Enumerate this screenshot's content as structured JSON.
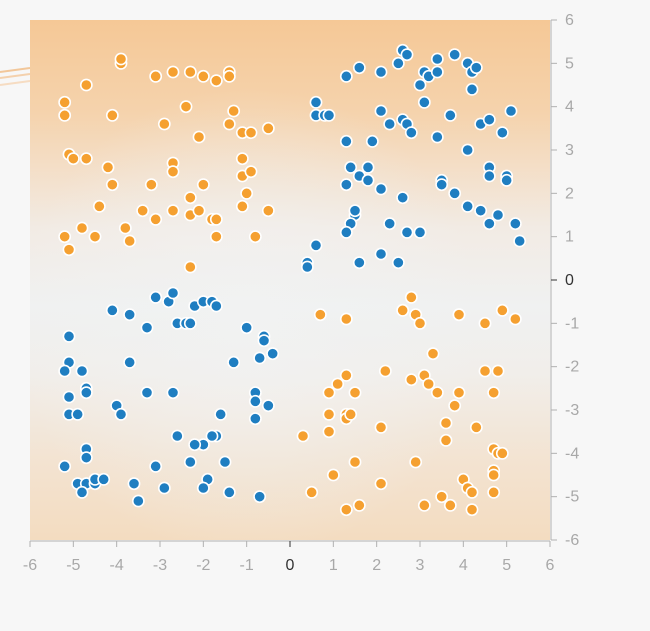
{
  "chart_data": {
    "type": "scatter",
    "title": "",
    "xlabel": "",
    "ylabel": "",
    "xlim": [
      -6,
      6
    ],
    "ylim": [
      -6,
      6
    ],
    "x_ticks": [
      "-6",
      "-5",
      "-4",
      "-3",
      "-2",
      "-1",
      "0",
      "1",
      "2",
      "3",
      "4",
      "5",
      "6"
    ],
    "y_ticks": [
      "6",
      "5",
      "4",
      "3",
      "2",
      "1",
      "0",
      "-1",
      "-2",
      "-3",
      "-4",
      "-5",
      "-6"
    ],
    "grid": false,
    "legend": "none",
    "background": "heatmap",
    "colors": {
      "positive": "#1f7ec1",
      "negative": "#f5a030",
      "bg_positive": "#f1f2f2",
      "bg_negative": "#f5c896"
    },
    "series": [
      {
        "class": "negative",
        "points": [
          [
            -5.2,
            4.1
          ],
          [
            -5.2,
            3.8
          ],
          [
            -4.7,
            4.5
          ],
          [
            -3.9,
            5.0
          ],
          [
            -3.9,
            5.1
          ],
          [
            -3.1,
            4.7
          ],
          [
            -2.7,
            4.8
          ],
          [
            -2.3,
            4.8
          ],
          [
            -2.0,
            4.7
          ],
          [
            -1.7,
            4.6
          ],
          [
            -1.4,
            4.8
          ],
          [
            -1.4,
            4.7
          ],
          [
            -4.1,
            3.8
          ],
          [
            -2.4,
            4.0
          ],
          [
            -1.3,
            3.9
          ],
          [
            -2.9,
            3.6
          ],
          [
            -1.4,
            3.6
          ],
          [
            -1.1,
            3.4
          ],
          [
            -0.9,
            3.4
          ],
          [
            -0.5,
            3.5
          ],
          [
            -2.1,
            3.3
          ],
          [
            -5.1,
            2.9
          ],
          [
            -5.0,
            2.8
          ],
          [
            -4.7,
            2.8
          ],
          [
            -4.2,
            2.6
          ],
          [
            -4.1,
            2.2
          ],
          [
            -3.2,
            2.2
          ],
          [
            -2.7,
            2.7
          ],
          [
            -2.7,
            2.5
          ],
          [
            -2.0,
            2.2
          ],
          [
            -1.1,
            2.8
          ],
          [
            -1.1,
            2.4
          ],
          [
            -0.9,
            2.5
          ],
          [
            -1.0,
            2.0
          ],
          [
            -4.4,
            1.7
          ],
          [
            -3.4,
            1.6
          ],
          [
            -3.1,
            1.4
          ],
          [
            -2.7,
            1.6
          ],
          [
            -2.3,
            1.9
          ],
          [
            -2.3,
            1.5
          ],
          [
            -2.1,
            1.6
          ],
          [
            -1.8,
            1.4
          ],
          [
            -1.7,
            1.4
          ],
          [
            -1.1,
            1.7
          ],
          [
            -0.5,
            1.6
          ],
          [
            -5.2,
            1.0
          ],
          [
            -5.1,
            0.7
          ],
          [
            -4.8,
            1.2
          ],
          [
            -4.5,
            1.0
          ],
          [
            -3.8,
            1.2
          ],
          [
            -3.7,
            0.9
          ],
          [
            -1.7,
            1.0
          ],
          [
            -0.8,
            1.0
          ],
          [
            -2.3,
            0.3
          ],
          [
            0.7,
            -0.8
          ],
          [
            1.3,
            -0.9
          ],
          [
            2.6,
            -0.7
          ],
          [
            2.8,
            -0.4
          ],
          [
            2.9,
            -0.8
          ],
          [
            3.0,
            -1.0
          ],
          [
            3.9,
            -0.8
          ],
          [
            3.9,
            -0.8
          ],
          [
            4.5,
            -1.0
          ],
          [
            4.9,
            -0.7
          ],
          [
            5.2,
            -0.9
          ],
          [
            1.3,
            -2.2
          ],
          [
            1.1,
            -2.4
          ],
          [
            0.9,
            -2.6
          ],
          [
            1.5,
            -2.6
          ],
          [
            2.2,
            -2.1
          ],
          [
            2.8,
            -2.3
          ],
          [
            3.1,
            -2.2
          ],
          [
            3.2,
            -2.4
          ],
          [
            3.3,
            -1.7
          ],
          [
            3.4,
            -2.6
          ],
          [
            3.8,
            -2.9
          ],
          [
            3.9,
            -2.6
          ],
          [
            4.5,
            -2.1
          ],
          [
            4.7,
            -2.6
          ],
          [
            4.8,
            -2.1
          ],
          [
            0.9,
            -3.1
          ],
          [
            0.9,
            -3.5
          ],
          [
            1.3,
            -3.1
          ],
          [
            1.3,
            -3.2
          ],
          [
            1.4,
            -3.1
          ],
          [
            2.1,
            -3.4
          ],
          [
            3.6,
            -3.3
          ],
          [
            3.6,
            -3.7
          ],
          [
            4.3,
            -3.4
          ],
          [
            4.7,
            -3.9
          ],
          [
            4.8,
            -4.0
          ],
          [
            4.9,
            -4.0
          ],
          [
            0.3,
            -3.6
          ],
          [
            1.0,
            -4.5
          ],
          [
            1.5,
            -4.2
          ],
          [
            2.9,
            -4.2
          ],
          [
            4.0,
            -4.6
          ],
          [
            4.1,
            -4.8
          ],
          [
            4.7,
            -4.4
          ],
          [
            4.7,
            -4.5
          ],
          [
            4.7,
            -4.9
          ],
          [
            0.5,
            -4.9
          ],
          [
            1.3,
            -5.3
          ],
          [
            1.6,
            -5.2
          ],
          [
            2.1,
            -4.7
          ],
          [
            3.1,
            -5.2
          ],
          [
            3.5,
            -5.0
          ],
          [
            3.7,
            -5.2
          ],
          [
            4.2,
            -5.3
          ],
          [
            4.2,
            -4.9
          ]
        ]
      },
      {
        "class": "positive",
        "points": [
          [
            0.6,
            4.1
          ],
          [
            0.6,
            3.8
          ],
          [
            0.8,
            3.8
          ],
          [
            0.9,
            3.8
          ],
          [
            1.3,
            4.7
          ],
          [
            1.6,
            4.9
          ],
          [
            2.1,
            4.8
          ],
          [
            2.5,
            5.0
          ],
          [
            2.6,
            5.3
          ],
          [
            2.7,
            5.2
          ],
          [
            3.0,
            4.5
          ],
          [
            3.1,
            4.8
          ],
          [
            3.2,
            4.7
          ],
          [
            3.4,
            5.1
          ],
          [
            3.4,
            4.8
          ],
          [
            3.8,
            5.2
          ],
          [
            4.1,
            5.0
          ],
          [
            4.2,
            4.8
          ],
          [
            4.3,
            4.9
          ],
          [
            4.2,
            4.4
          ],
          [
            2.1,
            3.9
          ],
          [
            2.3,
            3.6
          ],
          [
            2.6,
            3.7
          ],
          [
            2.7,
            3.6
          ],
          [
            2.8,
            3.4
          ],
          [
            3.1,
            4.1
          ],
          [
            3.4,
            3.3
          ],
          [
            3.7,
            3.8
          ],
          [
            4.4,
            3.6
          ],
          [
            4.6,
            3.7
          ],
          [
            4.9,
            3.4
          ],
          [
            5.1,
            3.9
          ],
          [
            1.3,
            3.2
          ],
          [
            1.4,
            2.6
          ],
          [
            1.6,
            2.4
          ],
          [
            1.8,
            2.6
          ],
          [
            1.8,
            2.3
          ],
          [
            1.9,
            3.2
          ],
          [
            2.1,
            2.1
          ],
          [
            1.3,
            2.2
          ],
          [
            3.5,
            2.3
          ],
          [
            3.5,
            2.2
          ],
          [
            4.1,
            3.0
          ],
          [
            4.6,
            2.6
          ],
          [
            4.6,
            2.4
          ],
          [
            5.0,
            2.4
          ],
          [
            5.0,
            2.3
          ],
          [
            1.5,
            1.5
          ],
          [
            1.5,
            1.6
          ],
          [
            1.4,
            1.3
          ],
          [
            1.3,
            1.1
          ],
          [
            2.3,
            1.3
          ],
          [
            2.6,
            1.9
          ],
          [
            2.7,
            1.1
          ],
          [
            3.0,
            1.1
          ],
          [
            3.8,
            2.0
          ],
          [
            4.1,
            1.7
          ],
          [
            4.4,
            1.6
          ],
          [
            4.6,
            1.3
          ],
          [
            4.8,
            1.5
          ],
          [
            5.2,
            1.3
          ],
          [
            5.3,
            0.9
          ],
          [
            0.6,
            0.8
          ],
          [
            0.4,
            0.4
          ],
          [
            0.4,
            0.3
          ],
          [
            1.6,
            0.4
          ],
          [
            2.1,
            0.6
          ],
          [
            2.5,
            0.4
          ],
          [
            -4.1,
            -0.7
          ],
          [
            -3.7,
            -0.8
          ],
          [
            -3.3,
            -1.1
          ],
          [
            -3.1,
            -0.4
          ],
          [
            -2.8,
            -0.5
          ],
          [
            -2.6,
            -1.0
          ],
          [
            -2.4,
            -1.0
          ],
          [
            -2.3,
            -1.0
          ],
          [
            -2.2,
            -0.6
          ],
          [
            -2.0,
            -0.5
          ],
          [
            -1.8,
            -0.5
          ],
          [
            -1.7,
            -0.6
          ],
          [
            -2.7,
            -0.3
          ],
          [
            -1.0,
            -1.1
          ],
          [
            -0.6,
            -1.3
          ],
          [
            -0.6,
            -1.4
          ],
          [
            -5.1,
            -1.3
          ],
          [
            -5.1,
            -1.9
          ],
          [
            -5.2,
            -2.1
          ],
          [
            -4.8,
            -2.1
          ],
          [
            -3.7,
            -1.9
          ],
          [
            -1.3,
            -1.9
          ],
          [
            -0.4,
            -1.7
          ],
          [
            -0.7,
            -1.8
          ],
          [
            -5.1,
            -2.7
          ],
          [
            -4.7,
            -2.5
          ],
          [
            -4.7,
            -2.6
          ],
          [
            -3.3,
            -2.6
          ],
          [
            -2.7,
            -2.6
          ],
          [
            -0.8,
            -2.6
          ],
          [
            -0.8,
            -2.8
          ],
          [
            -5.1,
            -3.1
          ],
          [
            -4.9,
            -3.1
          ],
          [
            -4.0,
            -2.9
          ],
          [
            -3.9,
            -3.1
          ],
          [
            -2.6,
            -3.6
          ],
          [
            -1.6,
            -3.1
          ],
          [
            -1.7,
            -3.6
          ],
          [
            -1.8,
            -3.6
          ],
          [
            -2.0,
            -3.8
          ],
          [
            -2.2,
            -3.8
          ],
          [
            -0.8,
            -3.2
          ],
          [
            -0.5,
            -2.9
          ],
          [
            -4.7,
            -3.9
          ],
          [
            -4.7,
            -4.1
          ],
          [
            -5.2,
            -4.3
          ],
          [
            -4.9,
            -4.7
          ],
          [
            -4.7,
            -4.7
          ],
          [
            -4.5,
            -4.7
          ],
          [
            -4.5,
            -4.6
          ],
          [
            -4.3,
            -4.6
          ],
          [
            -3.6,
            -4.7
          ],
          [
            -3.1,
            -4.3
          ],
          [
            -2.3,
            -4.2
          ],
          [
            -1.5,
            -4.2
          ],
          [
            -1.9,
            -4.6
          ],
          [
            -2.0,
            -4.8
          ],
          [
            -1.4,
            -4.9
          ],
          [
            -4.8,
            -4.9
          ],
          [
            -3.5,
            -5.1
          ],
          [
            -2.9,
            -4.8
          ],
          [
            -0.7,
            -5.0
          ]
        ]
      }
    ]
  }
}
